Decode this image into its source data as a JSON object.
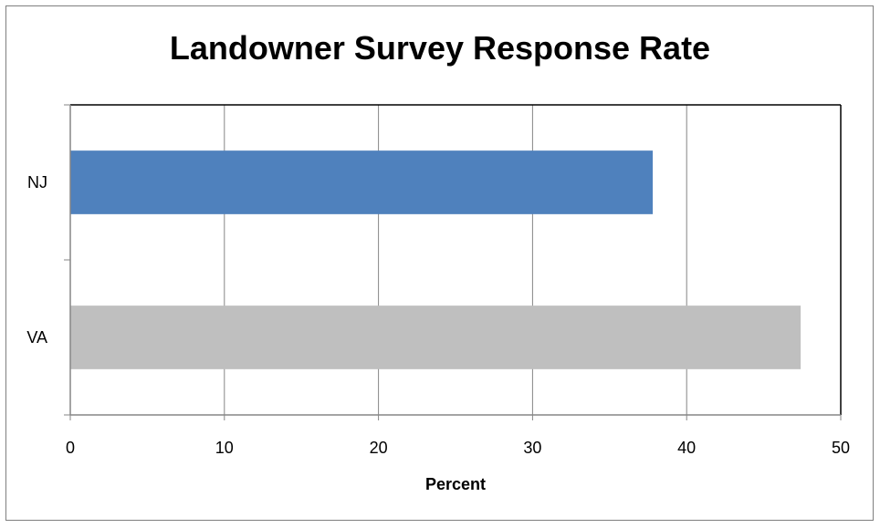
{
  "chart_data": {
    "type": "bar",
    "orientation": "horizontal",
    "title": "Landowner Survey Response Rate",
    "xlabel": "Percent",
    "ylabel": "",
    "xlim": [
      0,
      50
    ],
    "x_ticks": [
      0,
      10,
      20,
      30,
      40,
      50
    ],
    "categories": [
      "NJ",
      "VA"
    ],
    "values": [
      37.8,
      47.4
    ],
    "bar_colors": [
      "#4f81bd",
      "#bfbfbf"
    ],
    "grid": "vertical major gridlines",
    "legend": "none"
  }
}
